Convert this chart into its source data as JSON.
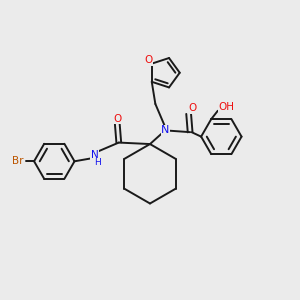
{
  "background_color": "#ebebeb",
  "bond_color": "#1a1a1a",
  "N_color": "#1010ee",
  "O_color": "#ee1010",
  "Br_color": "#bb5500",
  "figsize": [
    3.0,
    3.0
  ],
  "dpi": 100,
  "xlim": [
    0,
    10
  ],
  "ylim": [
    0,
    10
  ]
}
